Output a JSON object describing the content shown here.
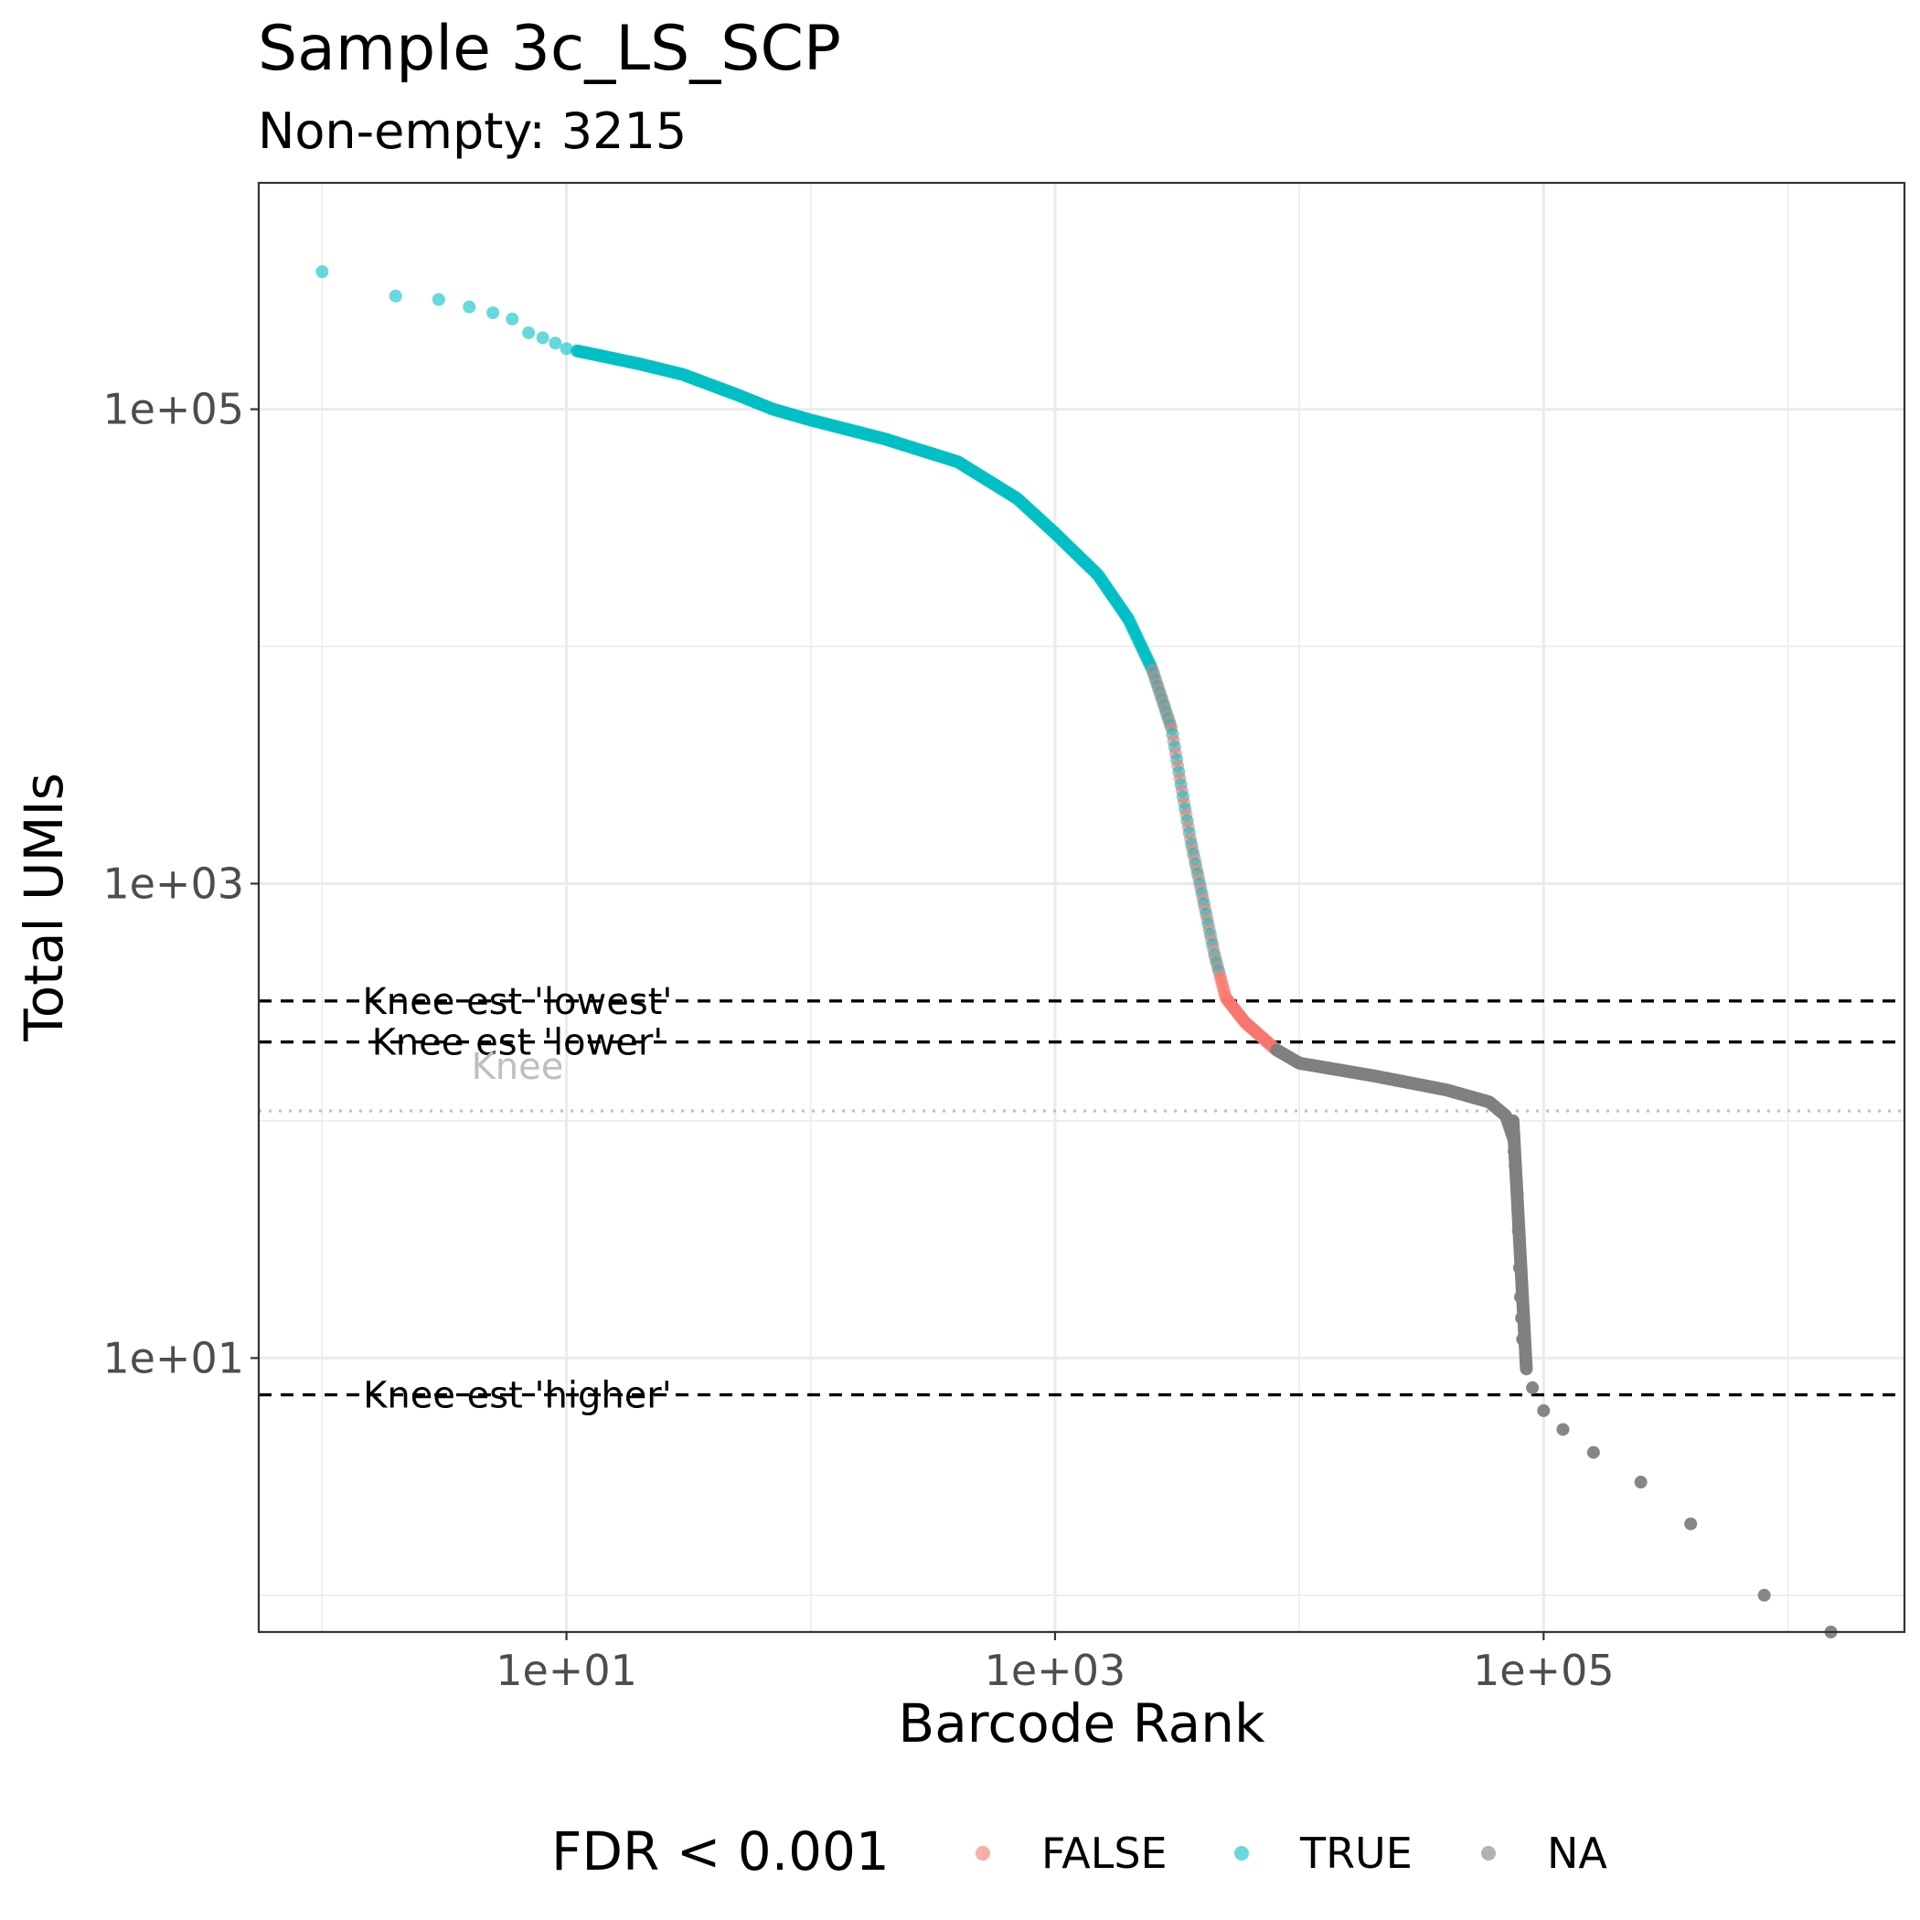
{
  "chart_data": {
    "type": "scatter",
    "title": "Sample 3c_LS_SCP",
    "subtitle": "Non-empty: 3215",
    "xlabel": "Barcode Rank",
    "ylabel": "Total UMIs",
    "x_scale": "log10",
    "y_scale": "log10",
    "xlim": [
      0.55,
      3000000
    ],
    "ylim": [
      0.7,
      900000
    ],
    "x_ticks": [
      10,
      1000,
      100000
    ],
    "x_tick_labels": [
      "1e+01",
      "1e+03",
      "1e+05"
    ],
    "y_ticks": [
      10,
      1000,
      100000
    ],
    "y_tick_labels": [
      "1e+01",
      "1e+03",
      "1e+05"
    ],
    "grid": true,
    "legend": {
      "title": "FDR < 0.001",
      "position": "bottom",
      "entries": [
        {
          "label": "FALSE",
          "color": "#F8766D"
        },
        {
          "label": "TRUE",
          "color": "#00BFC4"
        },
        {
          "label": "NA",
          "color": "#7F7F7F"
        }
      ]
    },
    "reference_lines": [
      {
        "label": "Knee est 'lowest'",
        "y": 320,
        "style": "dashed",
        "color": "#000000"
      },
      {
        "label": "Knee est 'lower'",
        "y": 215,
        "style": "dashed",
        "color": "#000000"
      },
      {
        "label": "Knee",
        "y": 110,
        "style": "dotted",
        "color": "#BFBFBF"
      },
      {
        "label": "Knee est 'higher'",
        "y": 7,
        "style": "dashed",
        "color": "#000000"
      }
    ],
    "curve_anchors": [
      [
        1,
        380000
      ],
      [
        2,
        300000
      ],
      [
        3,
        290000
      ],
      [
        4,
        270000
      ],
      [
        5,
        255000
      ],
      [
        6,
        240000
      ],
      [
        8,
        200000
      ],
      [
        10,
        180000
      ],
      [
        15,
        165000
      ],
      [
        20,
        155000
      ],
      [
        30,
        140000
      ],
      [
        50,
        115000
      ],
      [
        70,
        100000
      ],
      [
        100,
        90000
      ],
      [
        200,
        75000
      ],
      [
        400,
        60000
      ],
      [
        700,
        42000
      ],
      [
        1000,
        30000
      ],
      [
        1500,
        20000
      ],
      [
        2000,
        13000
      ],
      [
        2500,
        8000
      ],
      [
        3000,
        4500
      ],
      [
        3300,
        2500
      ],
      [
        3600,
        1500
      ],
      [
        4000,
        900
      ],
      [
        4500,
        500
      ],
      [
        5000,
        330
      ],
      [
        6000,
        260
      ],
      [
        8000,
        200
      ],
      [
        10000,
        175
      ],
      [
        20000,
        155
      ],
      [
        40000,
        135
      ],
      [
        60000,
        120
      ],
      [
        70000,
        105
      ],
      [
        75000,
        85
      ],
      [
        78000,
        50
      ],
      [
        80000,
        20
      ],
      [
        82000,
        12
      ],
      [
        85000,
        9
      ],
      [
        95000,
        6
      ],
      [
        120000,
        4
      ],
      [
        170000,
        3
      ],
      [
        250000,
        2
      ],
      [
        600000,
        1
      ],
      [
        1500000,
        0.7
      ]
    ],
    "group_bounds": {
      "TRUE_end": 2500,
      "mixed_end": 4700,
      "FALSE_end": 8000
    },
    "isolated_points": [
      {
        "x": 1,
        "y": 380000,
        "group": "TRUE"
      },
      {
        "x": 2,
        "y": 300000,
        "group": "TRUE"
      },
      {
        "x": 3,
        "y": 290000,
        "group": "TRUE"
      },
      {
        "x": 4,
        "y": 270000,
        "group": "TRUE"
      },
      {
        "x": 5,
        "y": 255000,
        "group": "TRUE"
      },
      {
        "x": 6,
        "y": 240000,
        "group": "TRUE"
      },
      {
        "x": 7,
        "y": 210000,
        "group": "TRUE"
      },
      {
        "x": 8,
        "y": 200000,
        "group": "TRUE"
      },
      {
        "x": 9,
        "y": 190000,
        "group": "TRUE"
      },
      {
        "x": 10,
        "y": 180000,
        "group": "TRUE"
      },
      {
        "x": 90000,
        "y": 7.5,
        "group": "NA"
      },
      {
        "x": 100000,
        "y": 6,
        "group": "NA"
      },
      {
        "x": 120000,
        "y": 5,
        "group": "NA"
      },
      {
        "x": 160000,
        "y": 4,
        "group": "NA"
      },
      {
        "x": 250000,
        "y": 3,
        "group": "NA"
      },
      {
        "x": 400000,
        "y": 2,
        "group": "NA"
      },
      {
        "x": 800000,
        "y": 1,
        "group": "NA"
      },
      {
        "x": 1500000,
        "y": 0.7,
        "group": "NA"
      }
    ]
  }
}
